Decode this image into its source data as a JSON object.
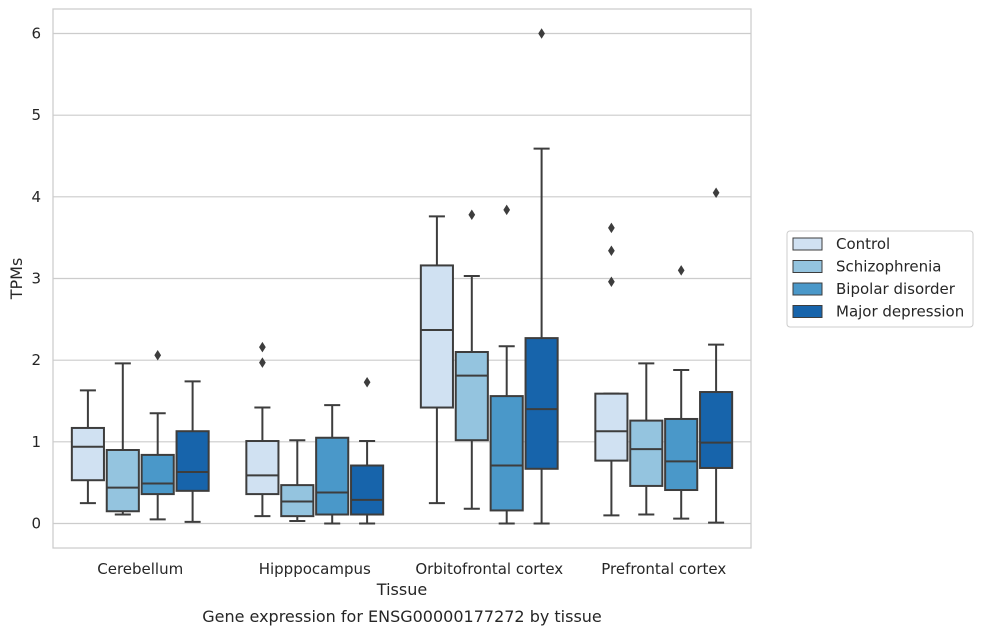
{
  "chart_data": {
    "type": "box",
    "caption": "Gene expression for ENSG00000177272 by tissue",
    "xlabel": "Tissue",
    "ylabel": "TPMs",
    "ylim": [
      -0.3,
      6.3
    ],
    "yticks": [
      0,
      1,
      2,
      3,
      4,
      5,
      6
    ],
    "grid": true,
    "legend_position": "right",
    "categories": [
      "Cerebellum",
      "Hipppocampus",
      "Orbitofrontal cortex",
      "Prefrontal cortex"
    ],
    "series": [
      {
        "name": "Control",
        "color": "#d0e1f2",
        "boxes": [
          {
            "whislo": 0.25,
            "q1": 0.53,
            "med": 0.94,
            "q3": 1.17,
            "whishi": 1.63,
            "fliers": []
          },
          {
            "whislo": 0.09,
            "q1": 0.36,
            "med": 0.59,
            "q3": 1.01,
            "whishi": 1.42,
            "fliers": [
              1.97,
              2.16
            ]
          },
          {
            "whislo": 0.25,
            "q1": 1.42,
            "med": 2.37,
            "q3": 3.16,
            "whishi": 3.76,
            "fliers": []
          },
          {
            "whislo": 0.1,
            "q1": 0.77,
            "med": 1.13,
            "q3": 1.59,
            "whishi": 1.59,
            "fliers": [
              2.96,
              3.34,
              3.62
            ]
          }
        ]
      },
      {
        "name": "Schizophrenia",
        "color": "#94c4df",
        "boxes": [
          {
            "whislo": 0.11,
            "q1": 0.15,
            "med": 0.44,
            "q3": 0.9,
            "whishi": 1.96,
            "fliers": []
          },
          {
            "whislo": 0.03,
            "q1": 0.09,
            "med": 0.27,
            "q3": 0.47,
            "whishi": 1.02,
            "fliers": []
          },
          {
            "whislo": 0.18,
            "q1": 1.02,
            "med": 1.81,
            "q3": 2.1,
            "whishi": 3.03,
            "fliers": [
              3.78
            ]
          },
          {
            "whislo": 0.11,
            "q1": 0.46,
            "med": 0.91,
            "q3": 1.26,
            "whishi": 1.96,
            "fliers": []
          }
        ]
      },
      {
        "name": "Bipolar disorder",
        "color": "#4a98c9",
        "boxes": [
          {
            "whislo": 0.05,
            "q1": 0.36,
            "med": 0.49,
            "q3": 0.84,
            "whishi": 1.35,
            "fliers": [
              2.06
            ]
          },
          {
            "whislo": 0.0,
            "q1": 0.11,
            "med": 0.38,
            "q3": 1.05,
            "whishi": 1.45,
            "fliers": []
          },
          {
            "whislo": 0.0,
            "q1": 0.16,
            "med": 0.71,
            "q3": 1.56,
            "whishi": 2.17,
            "fliers": [
              3.84
            ]
          },
          {
            "whislo": 0.06,
            "q1": 0.41,
            "med": 0.76,
            "q3": 1.28,
            "whishi": 1.88,
            "fliers": [
              3.1
            ]
          }
        ]
      },
      {
        "name": "Major depression",
        "color": "#1764ab",
        "boxes": [
          {
            "whislo": 0.02,
            "q1": 0.4,
            "med": 0.63,
            "q3": 1.13,
            "whishi": 1.74,
            "fliers": []
          },
          {
            "whislo": 0.0,
            "q1": 0.11,
            "med": 0.29,
            "q3": 0.71,
            "whishi": 1.01,
            "fliers": [
              1.73
            ]
          },
          {
            "whislo": 0.0,
            "q1": 0.67,
            "med": 1.4,
            "q3": 2.27,
            "whishi": 4.59,
            "fliers": [
              6.0
            ]
          },
          {
            "whislo": 0.01,
            "q1": 0.68,
            "med": 0.99,
            "q3": 1.61,
            "whishi": 2.19,
            "fliers": [
              4.05
            ]
          }
        ]
      }
    ]
  }
}
